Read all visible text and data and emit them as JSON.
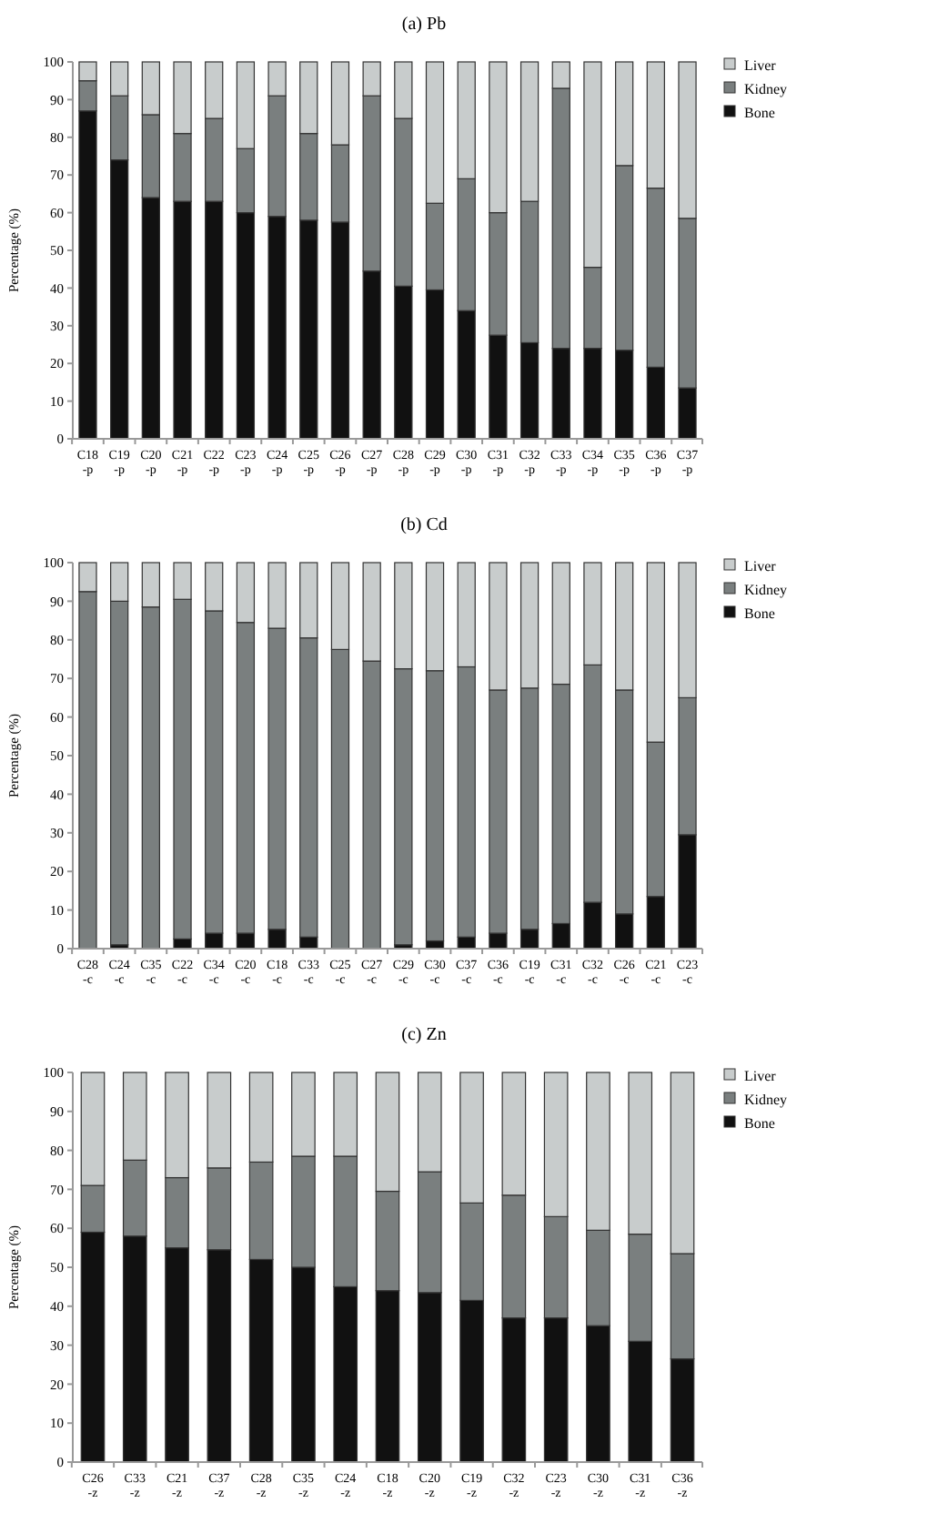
{
  "chart_data": [
    {
      "type": "bar",
      "stacked": true,
      "title": "(a) Pb",
      "ylabel": "Percentage (%)",
      "ylim": [
        0,
        100
      ],
      "yticks": [
        0,
        10,
        20,
        30,
        40,
        50,
        60,
        70,
        80,
        90,
        100
      ],
      "legend": "top right",
      "categories": [
        "C18\n-p",
        "C19\n-p",
        "C20\n-p",
        "C21\n-p",
        "C22\n-p",
        "C23\n-p",
        "C24\n-p",
        "C25\n-p",
        "C26\n-p",
        "C27\n-p",
        "C28\n-p",
        "C29\n-p",
        "C30\n-p",
        "C31\n-p",
        "C32\n-p",
        "C33\n-p",
        "C34\n-p",
        "C35\n-p",
        "C36\n-p",
        "C37\n-p"
      ],
      "series": [
        {
          "name": "Bone",
          "color": "#111111",
          "values": [
            87,
            74,
            64,
            63,
            63,
            60,
            59,
            58,
            57.5,
            44.5,
            40.5,
            39.5,
            34,
            27.5,
            25.5,
            24,
            24,
            23.5,
            19,
            13.5
          ]
        },
        {
          "name": "Kidney",
          "color": "#7a7f7f",
          "values": [
            8,
            17,
            22,
            18,
            22,
            17,
            32,
            23,
            20.5,
            46.5,
            44.5,
            23,
            35,
            32.5,
            37.5,
            69,
            21.5,
            49,
            47.5,
            45
          ]
        },
        {
          "name": "Liver",
          "color": "#c8cccc",
          "values": [
            5,
            9,
            14,
            19,
            15,
            23,
            9,
            19,
            22,
            9,
            15,
            37.5,
            31,
            40,
            37,
            7,
            54.5,
            27.5,
            33.5,
            41.5
          ]
        }
      ]
    },
    {
      "type": "bar",
      "stacked": true,
      "title": "(b) Cd",
      "ylabel": "Percentage (%)",
      "ylim": [
        0,
        100
      ],
      "yticks": [
        0,
        10,
        20,
        30,
        40,
        50,
        60,
        70,
        80,
        90,
        100
      ],
      "legend": "top right",
      "categories": [
        "C28\n-c",
        "C24\n-c",
        "C35\n-c",
        "C22\n-c",
        "C34\n-c",
        "C20\n-c",
        "C18\n-c",
        "C33\n-c",
        "C25\n-c",
        "C27\n-c",
        "C29\n-c",
        "C30\n-c",
        "C37\n-c",
        "C36\n-c",
        "C19\n-c",
        "C31\n-c",
        "C32\n-c",
        "C26\n-c",
        "C21\n-c",
        "C23\n-c"
      ],
      "series": [
        {
          "name": "Bone",
          "color": "#111111",
          "values": [
            0,
            1,
            0,
            2.5,
            4,
            4,
            5,
            3,
            0,
            0,
            1,
            2,
            3,
            4,
            5,
            6.5,
            12,
            9,
            13.5,
            29.5
          ]
        },
        {
          "name": "Kidney",
          "color": "#7a7f7f",
          "values": [
            92.5,
            89,
            88.5,
            88,
            83.5,
            80.5,
            78,
            77.5,
            77.5,
            74.5,
            71.5,
            70,
            70,
            63,
            62.5,
            62,
            61.5,
            58,
            40,
            35.5
          ]
        },
        {
          "name": "Liver",
          "color": "#c8cccc",
          "values": [
            7.5,
            10,
            11.5,
            9.5,
            12.5,
            15.5,
            17,
            19.5,
            22.5,
            25.5,
            27.5,
            28,
            27,
            33,
            32.5,
            31.5,
            26.5,
            33,
            46.5,
            35
          ]
        }
      ]
    },
    {
      "type": "bar",
      "stacked": true,
      "title": "(c) Zn",
      "ylabel": "Percentage (%)",
      "ylim": [
        0,
        100
      ],
      "yticks": [
        0,
        10,
        20,
        30,
        40,
        50,
        60,
        70,
        80,
        90,
        100
      ],
      "legend": "top right",
      "categories": [
        "C26\n-z",
        "C33\n-z",
        "C21\n-z",
        "C37\n-z",
        "C28\n-z",
        "C35\n-z",
        "C24\n-z",
        "C18\n-z",
        "C20\n-z",
        "C19\n-z",
        "C32\n-z",
        "C23\n-z",
        "C30\n-z",
        "C31\n-z",
        "C36\n-z"
      ],
      "series": [
        {
          "name": "Bone",
          "color": "#111111",
          "values": [
            59,
            58,
            55,
            54.5,
            52,
            50,
            45,
            44,
            43.5,
            41.5,
            37,
            37,
            35,
            31,
            26.5
          ]
        },
        {
          "name": "Kidney",
          "color": "#7a7f7f",
          "values": [
            12,
            19.5,
            18,
            21,
            25,
            28.5,
            33.5,
            25.5,
            31,
            25,
            31.5,
            26,
            24.5,
            27.5,
            27
          ]
        },
        {
          "name": "Liver",
          "color": "#c8cccc",
          "values": [
            29,
            22.5,
            27,
            24.5,
            23,
            21.5,
            21.5,
            30.5,
            25.5,
            33.5,
            31.5,
            37,
            40.5,
            41.5,
            46.5
          ]
        }
      ]
    }
  ]
}
